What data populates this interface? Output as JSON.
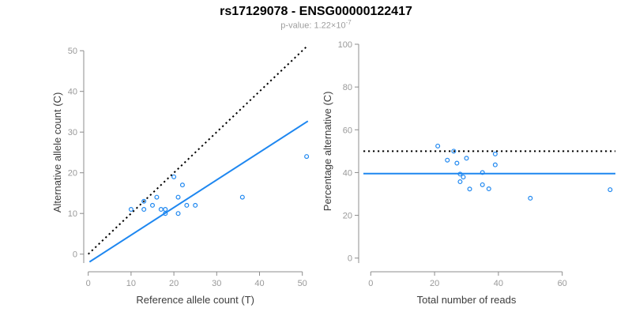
{
  "header": {
    "title": "rs17129078 - ENSG00000122417",
    "pvalue_text": "p-value: 1.22×10",
    "pvalue_exponent": "-7"
  },
  "colors": {
    "accent_blue": "#1e87f0",
    "line_black": "#000000",
    "axis_gray": "#8c8c8c",
    "tick_label_gray": "#999999",
    "axis_title_gray": "#3d3d3d",
    "subtitle_gray": "#9e9e9e"
  },
  "chart_data": [
    {
      "type": "scatter",
      "name": "allele-counts-scatter",
      "xlabel": "Reference allele count (T)",
      "ylabel": "Alternative allele count (C)",
      "xlim": [
        0,
        52
      ],
      "ylim": [
        0,
        52
      ],
      "xticks": [
        0,
        10,
        20,
        30,
        40,
        50
      ],
      "yticks": [
        0,
        10,
        20,
        30,
        40,
        50
      ],
      "grid": false,
      "legend": "none",
      "points": [
        [
          10,
          11
        ],
        [
          13,
          13
        ],
        [
          13,
          11
        ],
        [
          15,
          12
        ],
        [
          16,
          14
        ],
        [
          17,
          11
        ],
        [
          18,
          11
        ],
        [
          18,
          10
        ],
        [
          20,
          19
        ],
        [
          21,
          14
        ],
        [
          21,
          10
        ],
        [
          22,
          17
        ],
        [
          23,
          12
        ],
        [
          25,
          12
        ],
        [
          36,
          14
        ],
        [
          51,
          24
        ]
      ],
      "lines": [
        {
          "name": "identity-line",
          "style": "dotted",
          "color": "#000000",
          "x1": 0,
          "y1": 0,
          "x2": 51.3,
          "y2": 51.3
        },
        {
          "name": "fit-line",
          "style": "solid",
          "color": "#1e87f0",
          "x1": 0.3,
          "y1": -1.9,
          "x2": 51.3,
          "y2": 32.7
        }
      ]
    },
    {
      "type": "scatter",
      "name": "percentage-vs-coverage-scatter",
      "xlabel": "Total number of reads",
      "ylabel": "Percentage alternative (C)",
      "xlim": [
        0,
        78
      ],
      "ylim": [
        0,
        100
      ],
      "xticks": [
        0,
        20,
        40,
        60
      ],
      "yticks": [
        0,
        20,
        40,
        60,
        80,
        100
      ],
      "grid": false,
      "legend": "none",
      "points": [
        [
          21,
          52.4
        ],
        [
          26,
          50
        ],
        [
          24,
          45.8
        ],
        [
          27,
          44.4
        ],
        [
          30,
          46.7
        ],
        [
          28,
          39.3
        ],
        [
          29,
          37.9
        ],
        [
          28,
          35.7
        ],
        [
          39,
          48.7
        ],
        [
          35,
          40
        ],
        [
          31,
          32.3
        ],
        [
          39,
          43.6
        ],
        [
          35,
          34.3
        ],
        [
          37,
          32.4
        ],
        [
          50,
          28
        ],
        [
          75,
          32
        ]
      ],
      "lines": [
        {
          "name": "fifty-percent-line",
          "style": "dotted",
          "color": "#000000",
          "y": 50
        },
        {
          "name": "mean-percentage-line",
          "style": "solid",
          "color": "#1e87f0",
          "y": 39.5
        }
      ]
    }
  ]
}
